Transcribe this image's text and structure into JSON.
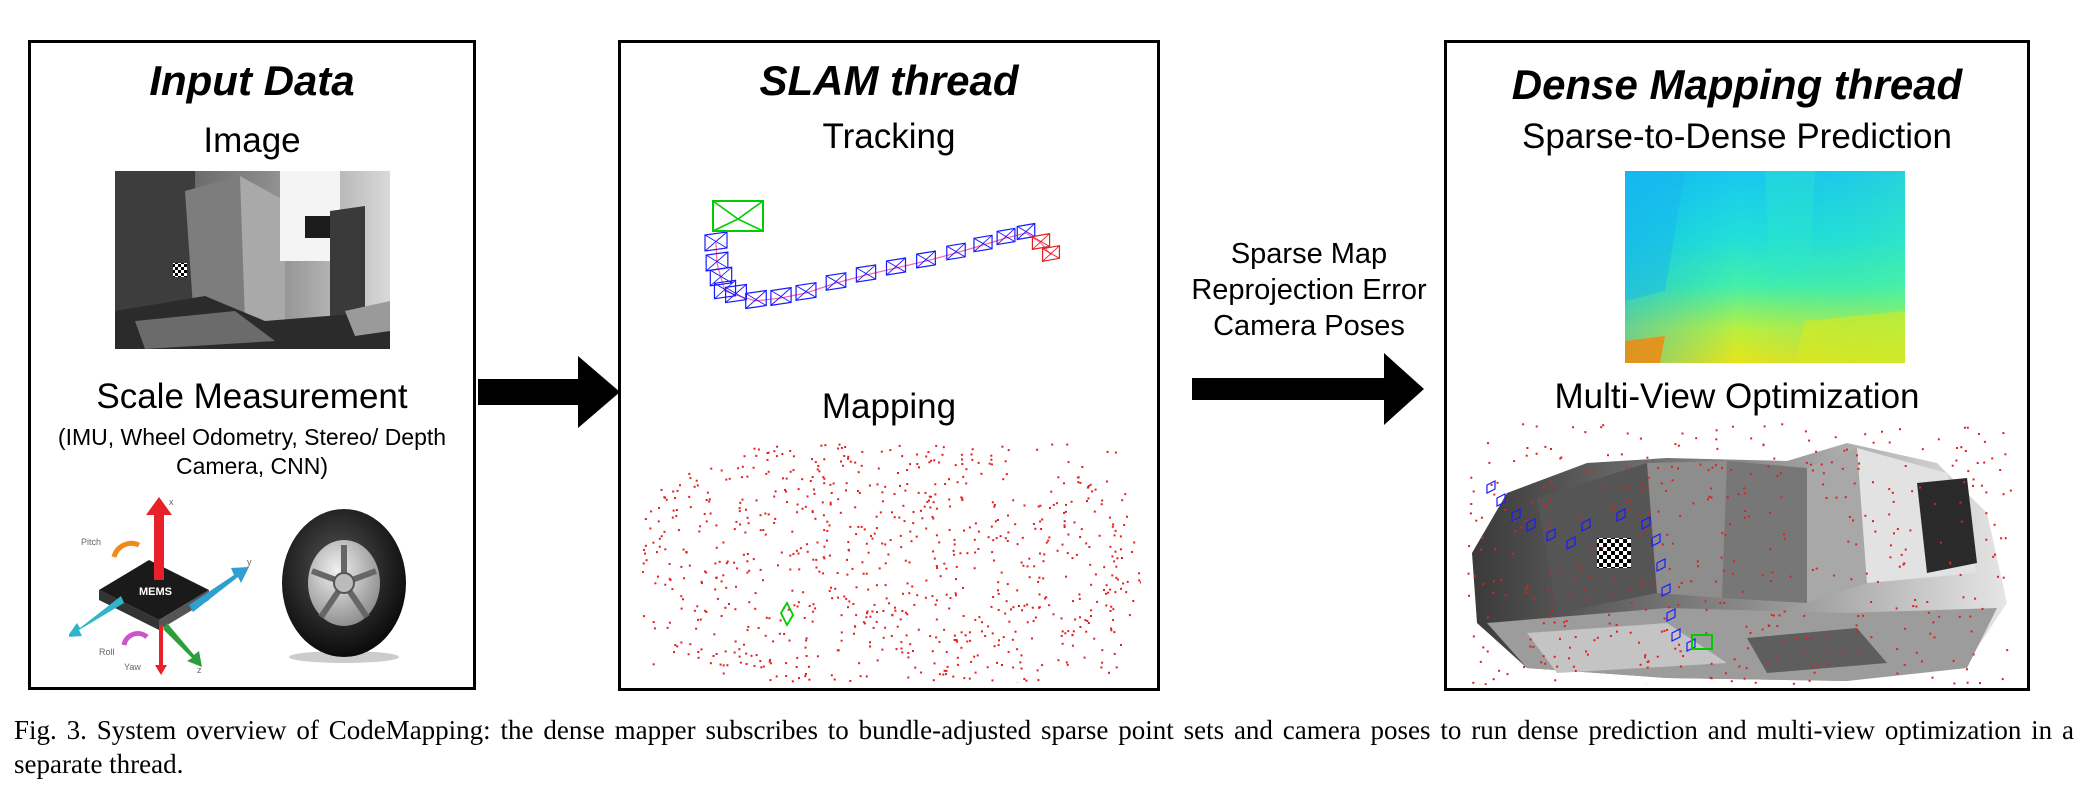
{
  "panels": {
    "input": {
      "title": "Input Data",
      "image_label": "Image",
      "scale_label": "Scale Measurement",
      "scale_detail_line1": "(IMU, Wheel Odometry, Stereo/ Depth",
      "scale_detail_line2": "Camera, CNN)",
      "imu_chip_label": "MEMS",
      "imu_axis_labels": [
        "Pitch",
        "Roll",
        "Yaw",
        "x",
        "y",
        "z"
      ]
    },
    "slam": {
      "title": "SLAM thread",
      "tracking_label": "Tracking",
      "mapping_label": "Mapping"
    },
    "dense": {
      "title": "Dense Mapping thread",
      "prediction_label": "Sparse-to-Dense Prediction",
      "optimization_label": "Multi-View Optimization"
    }
  },
  "flow_label": {
    "line1": "Sparse Map",
    "line2": "Reprojection Error",
    "line3": "Camera Poses"
  },
  "caption": "Fig. 3.  System overview of CodeMapping: the dense mapper subscribes to bundle-adjusted sparse point sets and camera poses to run dense prediction and multi-view optimization in a separate thread.",
  "colors": {
    "keyframe": "#1a1aff",
    "current_frame": "#00cc00",
    "map_points": "#e02020",
    "trajectory": "#ff66aa"
  }
}
